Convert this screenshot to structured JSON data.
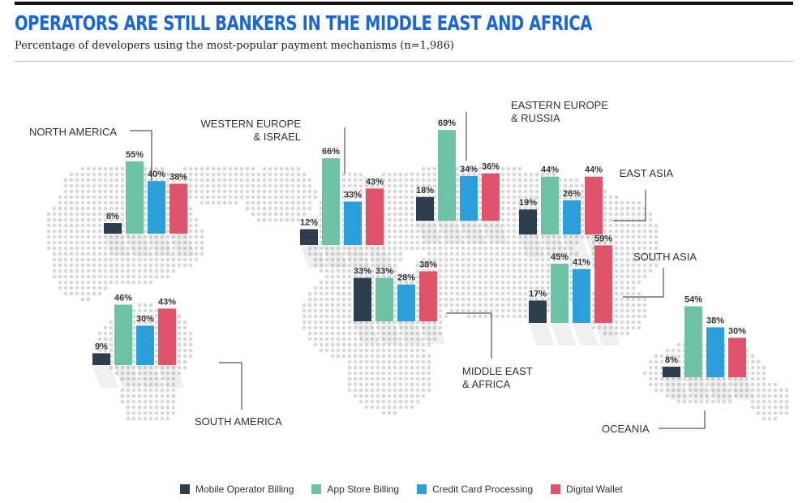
{
  "header": {
    "title": "OPERATORS ARE STILL BANKERS IN THE MIDDLE EAST AND AFRICA",
    "subtitle": "Percentage of developers using the most-popular payment mechanisms (n=1,986)"
  },
  "colors": {
    "title": "#1a66d6",
    "Mobile Operator Billing": "#2c3e4c",
    "App Store Billing": "#6cc2a6",
    "Credit Card Processing": "#2b9fd9",
    "Digital Wallet": "#e0536a",
    "map_dots": "#d9d9d9",
    "leader_lines": "#555555"
  },
  "legend": [
    {
      "label": "Mobile Operator Billing",
      "color": "#2c3e4c"
    },
    {
      "label": "App Store Billing",
      "color": "#6cc2a6"
    },
    {
      "label": "Credit Card Processing",
      "color": "#2b9fd9"
    },
    {
      "label": "Digital Wallet",
      "color": "#e0536a"
    }
  ],
  "chart_data": {
    "type": "bar",
    "series_names": [
      "Mobile Operator Billing",
      "App Store Billing",
      "Credit Card Processing",
      "Digital Wallet"
    ],
    "regions": [
      {
        "name": "NORTH AMERICA",
        "values": [
          8,
          55,
          40,
          38
        ]
      },
      {
        "name": "WESTERN EUROPE\n& ISRAEL",
        "values": [
          12,
          66,
          33,
          43
        ]
      },
      {
        "name": "EASTERN EUROPE\n& RUSSIA",
        "values": [
          18,
          69,
          34,
          36
        ]
      },
      {
        "name": "EAST ASIA",
        "values": [
          19,
          44,
          26,
          44
        ]
      },
      {
        "name": "SOUTH ASIA",
        "values": [
          17,
          45,
          41,
          59
        ]
      },
      {
        "name": "MIDDLE EAST\n& AFRICA",
        "values": [
          33,
          33,
          28,
          38
        ]
      },
      {
        "name": "SOUTH AMERICA",
        "values": [
          9,
          46,
          30,
          43
        ]
      },
      {
        "name": "OCEANIA",
        "values": [
          8,
          54,
          38,
          30
        ]
      }
    ],
    "value_suffix": "%"
  }
}
